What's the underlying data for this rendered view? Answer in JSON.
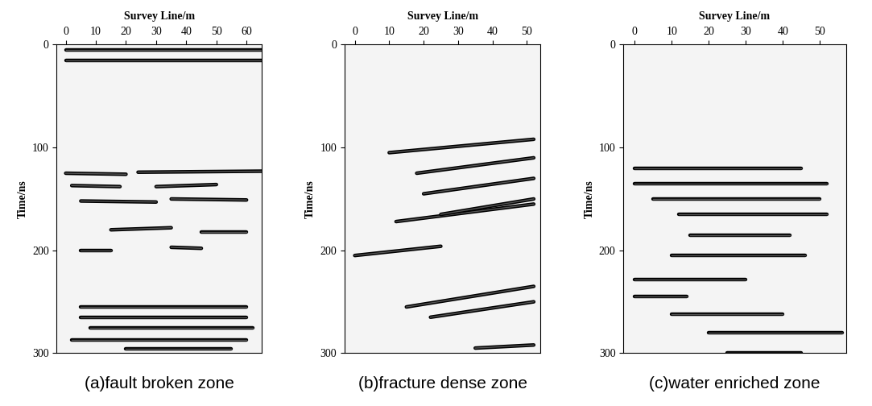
{
  "chart_data": [
    {
      "type": "radargram",
      "title": "(a)fault broken zone",
      "xlabel": "Survey Line/m",
      "ylabel": "Time/ns",
      "xlim": [
        -3,
        65
      ],
      "xticks": [
        0,
        10,
        20,
        30,
        40,
        50,
        60
      ],
      "ylim": [
        300,
        0
      ],
      "yticks": [
        0,
        100,
        200,
        300
      ],
      "reflections": [
        {
          "x": [
            0,
            65
          ],
          "t": [
            5,
            5
          ]
        },
        {
          "x": [
            0,
            65
          ],
          "t": [
            15,
            15
          ]
        },
        {
          "x": [
            0,
            20
          ],
          "t": [
            125,
            126
          ]
        },
        {
          "x": [
            24,
            65
          ],
          "t": [
            124,
            123
          ]
        },
        {
          "x": [
            2,
            18
          ],
          "t": [
            137,
            138
          ]
        },
        {
          "x": [
            30,
            50
          ],
          "t": [
            138,
            136
          ]
        },
        {
          "x": [
            5,
            30
          ],
          "t": [
            152,
            153
          ]
        },
        {
          "x": [
            35,
            60
          ],
          "t": [
            150,
            151
          ]
        },
        {
          "x": [
            15,
            35
          ],
          "t": [
            180,
            178
          ]
        },
        {
          "x": [
            45,
            60
          ],
          "t": [
            182,
            182
          ]
        },
        {
          "x": [
            5,
            15
          ],
          "t": [
            200,
            200
          ]
        },
        {
          "x": [
            35,
            45
          ],
          "t": [
            197,
            198
          ]
        },
        {
          "x": [
            5,
            60
          ],
          "t": [
            255,
            255
          ]
        },
        {
          "x": [
            5,
            60
          ],
          "t": [
            265,
            265
          ]
        },
        {
          "x": [
            8,
            62
          ],
          "t": [
            275,
            275
          ]
        },
        {
          "x": [
            2,
            60
          ],
          "t": [
            287,
            287
          ]
        },
        {
          "x": [
            20,
            55
          ],
          "t": [
            296,
            296
          ]
        }
      ]
    },
    {
      "type": "radargram",
      "title": "(b)fracture dense zone",
      "xlabel": "Survey Line/m",
      "ylabel": "Time/ns",
      "xlim": [
        -3,
        54
      ],
      "xticks": [
        0,
        10,
        20,
        30,
        40,
        50
      ],
      "ylim": [
        300,
        0
      ],
      "yticks": [
        0,
        100,
        200,
        300
      ],
      "reflections": [
        {
          "x": [
            10,
            52
          ],
          "t": [
            105,
            92
          ]
        },
        {
          "x": [
            18,
            52
          ],
          "t": [
            125,
            110
          ]
        },
        {
          "x": [
            20,
            52
          ],
          "t": [
            145,
            130
          ]
        },
        {
          "x": [
            12,
            52
          ],
          "t": [
            172,
            155
          ]
        },
        {
          "x": [
            25,
            52
          ],
          "t": [
            165,
            150
          ]
        },
        {
          "x": [
            0,
            25
          ],
          "t": [
            205,
            196
          ]
        },
        {
          "x": [
            15,
            52
          ],
          "t": [
            255,
            235
          ]
        },
        {
          "x": [
            22,
            52
          ],
          "t": [
            265,
            250
          ]
        },
        {
          "x": [
            35,
            52
          ],
          "t": [
            295,
            292
          ]
        }
      ]
    },
    {
      "type": "radargram",
      "title": "(c)water enriched zone",
      "xlabel": "Survey Line/m",
      "ylabel": "Time/ns",
      "xlim": [
        -3,
        57
      ],
      "xticks": [
        0,
        10,
        20,
        30,
        40,
        50
      ],
      "ylim": [
        300,
        0
      ],
      "yticks": [
        0,
        100,
        200,
        300
      ],
      "reflections": [
        {
          "x": [
            0,
            45
          ],
          "t": [
            120,
            120
          ]
        },
        {
          "x": [
            0,
            52
          ],
          "t": [
            135,
            135
          ]
        },
        {
          "x": [
            5,
            50
          ],
          "t": [
            150,
            150
          ]
        },
        {
          "x": [
            12,
            52
          ],
          "t": [
            165,
            165
          ]
        },
        {
          "x": [
            15,
            42
          ],
          "t": [
            185,
            185
          ]
        },
        {
          "x": [
            10,
            46
          ],
          "t": [
            205,
            205
          ]
        },
        {
          "x": [
            0,
            30
          ],
          "t": [
            228,
            228
          ]
        },
        {
          "x": [
            0,
            14
          ],
          "t": [
            245,
            245
          ]
        },
        {
          "x": [
            10,
            40
          ],
          "t": [
            262,
            262
          ]
        },
        {
          "x": [
            20,
            56
          ],
          "t": [
            280,
            280
          ]
        },
        {
          "x": [
            25,
            45
          ],
          "t": [
            300,
            300
          ]
        }
      ]
    }
  ]
}
